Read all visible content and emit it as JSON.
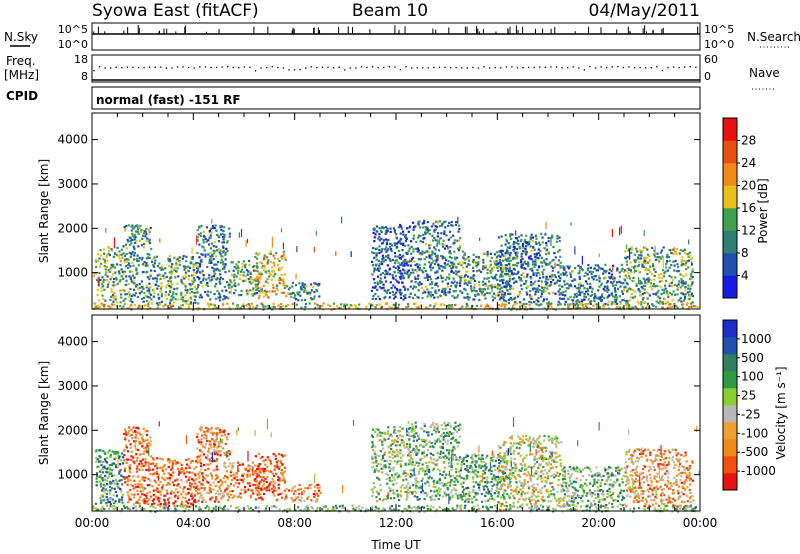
{
  "header": {
    "station": "Syowa East (fitACF)",
    "beam": "Beam 10",
    "date": "04/May/2011"
  },
  "sky_panel": {
    "left_label": "N.Sky",
    "right_label": "N.Search",
    "ticks_left": [
      "10^5",
      "10^0"
    ],
    "ticks_right": [
      "10^5",
      "10^0"
    ]
  },
  "freq_panel": {
    "left_label_1": "Freq.",
    "left_label_2": "[MHz]",
    "right_label": "Nave",
    "ticks_left": [
      "18",
      "8"
    ],
    "ticks_right": [
      "60",
      "0"
    ]
  },
  "cpid": {
    "label": "CPID",
    "mode": "normal (fast) -151 RF"
  },
  "colors": {
    "power": [
      "#1a1ae6",
      "#1f4fb0",
      "#2f7f73",
      "#3fa050",
      "#e8c018",
      "#f08a18",
      "#e85010",
      "#e81010"
    ],
    "velocity": [
      "#e81010",
      "#f05010",
      "#f08a18",
      "#f0a030",
      "#b8b8b8",
      "#88d030",
      "#2f9a40",
      "#2f7f60",
      "#2050b0",
      "#1a30c8"
    ]
  },
  "chart_data": [
    {
      "type": "heatmap",
      "quantity": "Power",
      "xlabel": "Time UT",
      "ylabel": "Slant Range [km]",
      "x_ticks": [
        "00:00",
        "04:00",
        "08:00",
        "12:00",
        "16:00",
        "20:00",
        "00:00"
      ],
      "x_range_hours": [
        0,
        24
      ],
      "y_ticks": [
        1000,
        2000,
        3000,
        4000
      ],
      "ylim_km": [
        180,
        4600
      ],
      "colorbar": {
        "label": "Power [dB]",
        "ticks": [
          4,
          8,
          12,
          16,
          20,
          24,
          28
        ],
        "range": [
          0,
          32
        ]
      },
      "echo_regions": [
        {
          "t0": 0.1,
          "t1": 1.2,
          "r0": 350,
          "r1": 1600,
          "level": 0.45
        },
        {
          "t0": 1.2,
          "t1": 2.3,
          "r0": 350,
          "r1": 2100,
          "level": 0.35
        },
        {
          "t0": 2.3,
          "t1": 4.1,
          "r0": 300,
          "r1": 1400,
          "level": 0.4
        },
        {
          "t0": 4.1,
          "t1": 5.4,
          "r0": 400,
          "r1": 2100,
          "level": 0.3
        },
        {
          "t0": 5.4,
          "t1": 6.7,
          "r0": 500,
          "r1": 1300,
          "level": 0.4
        },
        {
          "t0": 6.4,
          "t1": 7.6,
          "r0": 450,
          "r1": 1500,
          "level": 0.6
        },
        {
          "t0": 7.6,
          "t1": 9.0,
          "r0": 400,
          "r1": 800,
          "level": 0.35
        },
        {
          "t0": 11.0,
          "t1": 12.5,
          "r0": 400,
          "r1": 2100,
          "level": 0.2
        },
        {
          "t0": 12.5,
          "t1": 14.5,
          "r0": 450,
          "r1": 2200,
          "level": 0.3
        },
        {
          "t0": 14.5,
          "t1": 16.5,
          "r0": 400,
          "r1": 1500,
          "level": 0.35
        },
        {
          "t0": 16.0,
          "t1": 18.5,
          "r0": 300,
          "r1": 1900,
          "level": 0.3
        },
        {
          "t0": 18.5,
          "t1": 21.0,
          "r0": 300,
          "r1": 1200,
          "level": 0.3
        },
        {
          "t0": 21.0,
          "t1": 23.7,
          "r0": 300,
          "r1": 1600,
          "level": 0.4
        },
        {
          "t0": 0.0,
          "t1": 23.9,
          "r0": 190,
          "r1": 330,
          "level": 0.55
        }
      ]
    },
    {
      "type": "heatmap",
      "quantity": "Velocity",
      "xlabel": "Time UT",
      "ylabel": "Slant Range [km]",
      "x_ticks": [
        "00:00",
        "04:00",
        "08:00",
        "12:00",
        "16:00",
        "20:00",
        "00:00"
      ],
      "x_range_hours": [
        0,
        24
      ],
      "y_ticks": [
        1000,
        2000,
        3000,
        4000
      ],
      "ylim_km": [
        180,
        4600
      ],
      "colorbar": {
        "label": "Velocity [m s⁻¹]",
        "ticks": [
          1000,
          500,
          100,
          25,
          -25,
          -100,
          -500,
          -1000
        ]
      },
      "echo_regions": [
        {
          "t0": 0.1,
          "t1": 1.2,
          "r0": 350,
          "r1": 1600,
          "level": 0.7
        },
        {
          "t0": 1.2,
          "t1": 2.3,
          "r0": 350,
          "r1": 2100,
          "level": 0.2
        },
        {
          "t0": 2.3,
          "t1": 4.1,
          "r0": 300,
          "r1": 1400,
          "level": 0.15
        },
        {
          "t0": 4.1,
          "t1": 5.4,
          "r0": 400,
          "r1": 2100,
          "level": 0.25
        },
        {
          "t0": 5.4,
          "t1": 6.7,
          "r0": 500,
          "r1": 1300,
          "level": 0.2
        },
        {
          "t0": 6.4,
          "t1": 7.6,
          "r0": 450,
          "r1": 1500,
          "level": 0.15
        },
        {
          "t0": 7.6,
          "t1": 9.0,
          "r0": 400,
          "r1": 800,
          "level": 0.25
        },
        {
          "t0": 11.0,
          "t1": 12.5,
          "r0": 400,
          "r1": 2100,
          "level": 0.55
        },
        {
          "t0": 12.5,
          "t1": 14.5,
          "r0": 450,
          "r1": 2200,
          "level": 0.6
        },
        {
          "t0": 14.5,
          "t1": 16.5,
          "r0": 400,
          "r1": 1500,
          "level": 0.65
        },
        {
          "t0": 16.0,
          "t1": 18.5,
          "r0": 300,
          "r1": 1900,
          "level": 0.45
        },
        {
          "t0": 18.5,
          "t1": 21.0,
          "r0": 300,
          "r1": 1200,
          "level": 0.6
        },
        {
          "t0": 21.0,
          "t1": 23.7,
          "r0": 300,
          "r1": 1600,
          "level": 0.3
        },
        {
          "t0": 0.0,
          "t1": 23.9,
          "r0": 190,
          "r1": 330,
          "level": 0.6
        }
      ]
    }
  ]
}
